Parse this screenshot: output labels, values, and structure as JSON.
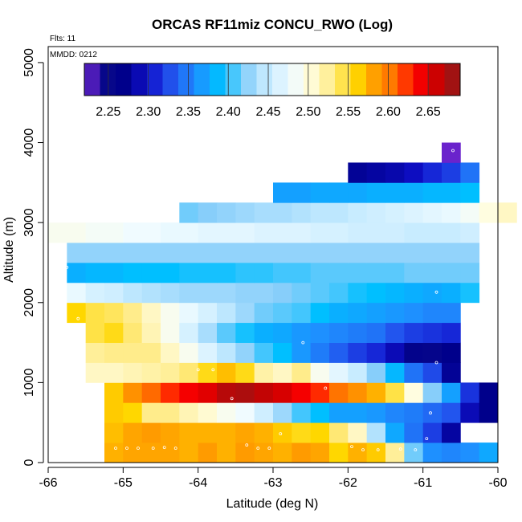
{
  "chart_data": {
    "type": "heatmap",
    "title": "ORCAS RF11miz CONCU_RWO (Log)",
    "annotations": {
      "flights": "Flts: 11",
      "date": "MMDD: 0212"
    },
    "xlabel": "Latitude (deg N)",
    "ylabel": "Altitude (m)",
    "xlim": [
      -66,
      -60
    ],
    "ylim": [
      0,
      5200
    ],
    "x_ticks": [
      -66,
      -65,
      -64,
      -63,
      -62,
      -61,
      -60
    ],
    "x_tick_labels": [
      "-66",
      "-65",
      "-64",
      "-63",
      "-62",
      "-61",
      "-60"
    ],
    "y_ticks": [
      0,
      1000,
      2000,
      3000,
      4000,
      5000
    ],
    "y_tick_labels": [
      "0",
      "1000",
      "2000",
      "3000",
      "4000",
      "5000"
    ],
    "colorbar": {
      "min": 2.22,
      "max": 2.69,
      "ticks": [
        2.25,
        2.3,
        2.35,
        2.4,
        2.45,
        2.5,
        2.55,
        2.6,
        2.65
      ],
      "tick_labels": [
        "2.25",
        "2.30",
        "2.35",
        "2.40",
        "2.45",
        "2.50",
        "2.55",
        "2.60",
        "2.65"
      ],
      "stops": [
        [
          2.22,
          "#8a2be2"
        ],
        [
          2.24,
          "#0a0a8a"
        ],
        [
          2.27,
          "#00008b"
        ],
        [
          2.3,
          "#1010cc"
        ],
        [
          2.33,
          "#2255ee"
        ],
        [
          2.36,
          "#1e90ff"
        ],
        [
          2.39,
          "#00bfff"
        ],
        [
          2.42,
          "#87cefa"
        ],
        [
          2.45,
          "#c8ecff"
        ],
        [
          2.48,
          "#f0fbff"
        ],
        [
          2.5,
          "#fffde0"
        ],
        [
          2.53,
          "#ffec8b"
        ],
        [
          2.56,
          "#ffd700"
        ],
        [
          2.58,
          "#ffa500"
        ],
        [
          2.61,
          "#ff6a00"
        ],
        [
          2.635,
          "#ff0000"
        ],
        [
          2.66,
          "#cd0000"
        ],
        [
          2.69,
          "#8b1a1a"
        ]
      ]
    },
    "cell_width_deg": 0.25,
    "cell_height_m": 250,
    "rows": [
      {
        "alt": 0,
        "lat0": -65.25,
        "values": [
          2.575,
          2.58,
          2.58,
          2.58,
          2.575,
          2.585,
          2.575,
          2.585,
          2.58,
          2.575,
          2.585,
          2.58,
          2.56,
          2.575,
          2.565,
          2.525,
          2.415,
          2.36,
          2.355,
          2.36,
          2.375
        ]
      },
      {
        "alt": 250,
        "lat0": -65.25,
        "values": [
          2.57,
          2.58,
          2.585,
          2.58,
          2.575,
          2.575,
          2.575,
          2.58,
          2.575,
          2.565,
          2.555,
          2.56,
          2.535,
          2.51,
          2.44,
          2.375,
          2.345,
          2.32,
          2.28
        ]
      },
      {
        "alt": 500,
        "lat0": -65.25,
        "values": [
          2.565,
          2.56,
          2.53,
          2.53,
          2.515,
          2.505,
          2.49,
          2.48,
          2.455,
          2.43,
          2.405,
          2.39,
          2.37,
          2.37,
          2.365,
          2.355,
          2.35,
          2.34,
          2.33,
          2.29,
          2.27
        ]
      },
      {
        "alt": 750,
        "lat0": -65.25,
        "values": [
          2.565,
          2.59,
          2.61,
          2.625,
          2.64,
          2.65,
          2.67,
          2.675,
          2.665,
          2.655,
          2.64,
          2.625,
          2.605,
          2.59,
          2.575,
          2.545,
          2.5,
          2.42,
          2.37,
          2.315,
          2.27
        ]
      },
      {
        "alt": 1000,
        "lat0": -65.5,
        "values": [
          2.51,
          2.51,
          2.515,
          2.52,
          2.525,
          2.535,
          2.555,
          2.57,
          2.555,
          2.52,
          2.51,
          2.53,
          2.49,
          2.47,
          2.45,
          2.42,
          2.385,
          2.345,
          2.325,
          2.275
        ]
      },
      {
        "alt": 1250,
        "lat0": -65.5,
        "values": [
          2.525,
          2.53,
          2.53,
          2.53,
          2.51,
          2.49,
          2.465,
          2.445,
          2.425,
          2.405,
          2.39,
          2.365,
          2.35,
          2.335,
          2.32,
          2.31,
          2.29,
          2.26,
          2.255,
          2.27
        ]
      },
      {
        "alt": 1500,
        "lat0": -65.5,
        "values": [
          2.545,
          2.555,
          2.535,
          2.515,
          2.49,
          2.46,
          2.435,
          2.41,
          2.395,
          2.38,
          2.375,
          2.365,
          2.36,
          2.355,
          2.35,
          2.345,
          2.33,
          2.32,
          2.315,
          2.31
        ]
      },
      {
        "alt": 1750,
        "lat0": -65.75,
        "values": [
          2.56,
          2.545,
          2.54,
          2.53,
          2.51,
          2.49,
          2.475,
          2.46,
          2.445,
          2.43,
          2.415,
          2.41,
          2.405,
          2.39,
          2.38,
          2.375,
          2.37,
          2.365,
          2.36,
          2.355,
          2.355
        ]
      },
      {
        "alt": 2000,
        "lat0": -65.75,
        "values": [
          2.475,
          2.46,
          2.455,
          2.445,
          2.44,
          2.435,
          2.43,
          2.43,
          2.43,
          2.425,
          2.425,
          2.42,
          2.415,
          2.41,
          2.405,
          2.395,
          2.39,
          2.385,
          2.38,
          2.375,
          2.38,
          2.395
        ]
      },
      {
        "alt": 2250,
        "lat0": -65.75,
        "values": [
          2.38,
          2.385,
          2.385,
          2.39,
          2.39,
          2.39,
          2.395,
          2.395,
          2.395,
          2.4,
          2.4,
          2.405,
          2.405,
          2.41,
          2.41,
          2.41,
          2.41,
          2.41,
          2.415,
          2.415,
          2.415,
          2.415
        ]
      },
      {
        "alt": 2500,
        "lat0": -65.75,
        "values": [
          2.425,
          2.425,
          2.425,
          2.425,
          2.425,
          2.425,
          2.425,
          2.425,
          2.425,
          2.425,
          2.425,
          2.425,
          2.425,
          2.425,
          2.425,
          2.425,
          2.425,
          2.425,
          2.425,
          2.425,
          2.425,
          2.425
        ]
      },
      {
        "alt": 2750,
        "lat0": -66.0,
        "values": [
          2.49,
          2.49,
          2.485,
          2.485,
          2.48,
          2.48,
          2.475,
          2.475,
          2.47,
          2.47,
          2.47,
          2.465,
          2.465,
          2.465,
          2.46,
          2.46,
          2.455,
          2.455,
          2.455,
          2.45,
          2.45,
          2.45,
          2.455
        ]
      },
      {
        "alt": 3000,
        "lat0": -64.25,
        "values": [
          2.415,
          2.42,
          2.425,
          2.43,
          2.435,
          2.435,
          2.44,
          2.445,
          2.445,
          2.45,
          2.455,
          2.46,
          2.465,
          2.47,
          2.475,
          2.485,
          2.5,
          2.51
        ]
      },
      {
        "alt": 3250,
        "lat0": -63.0,
        "values": [
          2.37,
          2.37,
          2.375,
          2.375,
          2.375,
          2.38,
          2.38,
          2.38,
          2.385,
          2.385,
          2.39
        ]
      },
      {
        "alt": 3500,
        "lat0": -62.0,
        "values": [
          2.275,
          2.28,
          2.285,
          2.295,
          2.31,
          2.32,
          2.345
        ]
      },
      {
        "alt": 3750,
        "lat0": -60.75,
        "values": [
          2.225
        ]
      }
    ],
    "sample_points": [
      [
        -65.3,
        550
      ],
      [
        -65.1,
        180
      ],
      [
        -64.95,
        180
      ],
      [
        -64.8,
        180
      ],
      [
        -64.6,
        180
      ],
      [
        -64.45,
        190
      ],
      [
        -64.3,
        180
      ],
      [
        -64.0,
        1160
      ],
      [
        -63.8,
        1160
      ],
      [
        -63.55,
        800
      ],
      [
        -63.35,
        220
      ],
      [
        -63.2,
        180
      ],
      [
        -63.05,
        180
      ],
      [
        -62.9,
        360
      ],
      [
        -62.6,
        1500
      ],
      [
        -62.3,
        930
      ],
      [
        -61.95,
        200
      ],
      [
        -61.8,
        160
      ],
      [
        -61.6,
        160
      ],
      [
        -61.3,
        170
      ],
      [
        -61.1,
        160
      ],
      [
        -60.95,
        300
      ],
      [
        -60.9,
        620
      ],
      [
        -60.82,
        1250
      ],
      [
        -60.82,
        2130
      ],
      [
        -60.6,
        3900
      ],
      [
        -65.6,
        1800
      ],
      [
        -65.75,
        2440
      ]
    ]
  }
}
